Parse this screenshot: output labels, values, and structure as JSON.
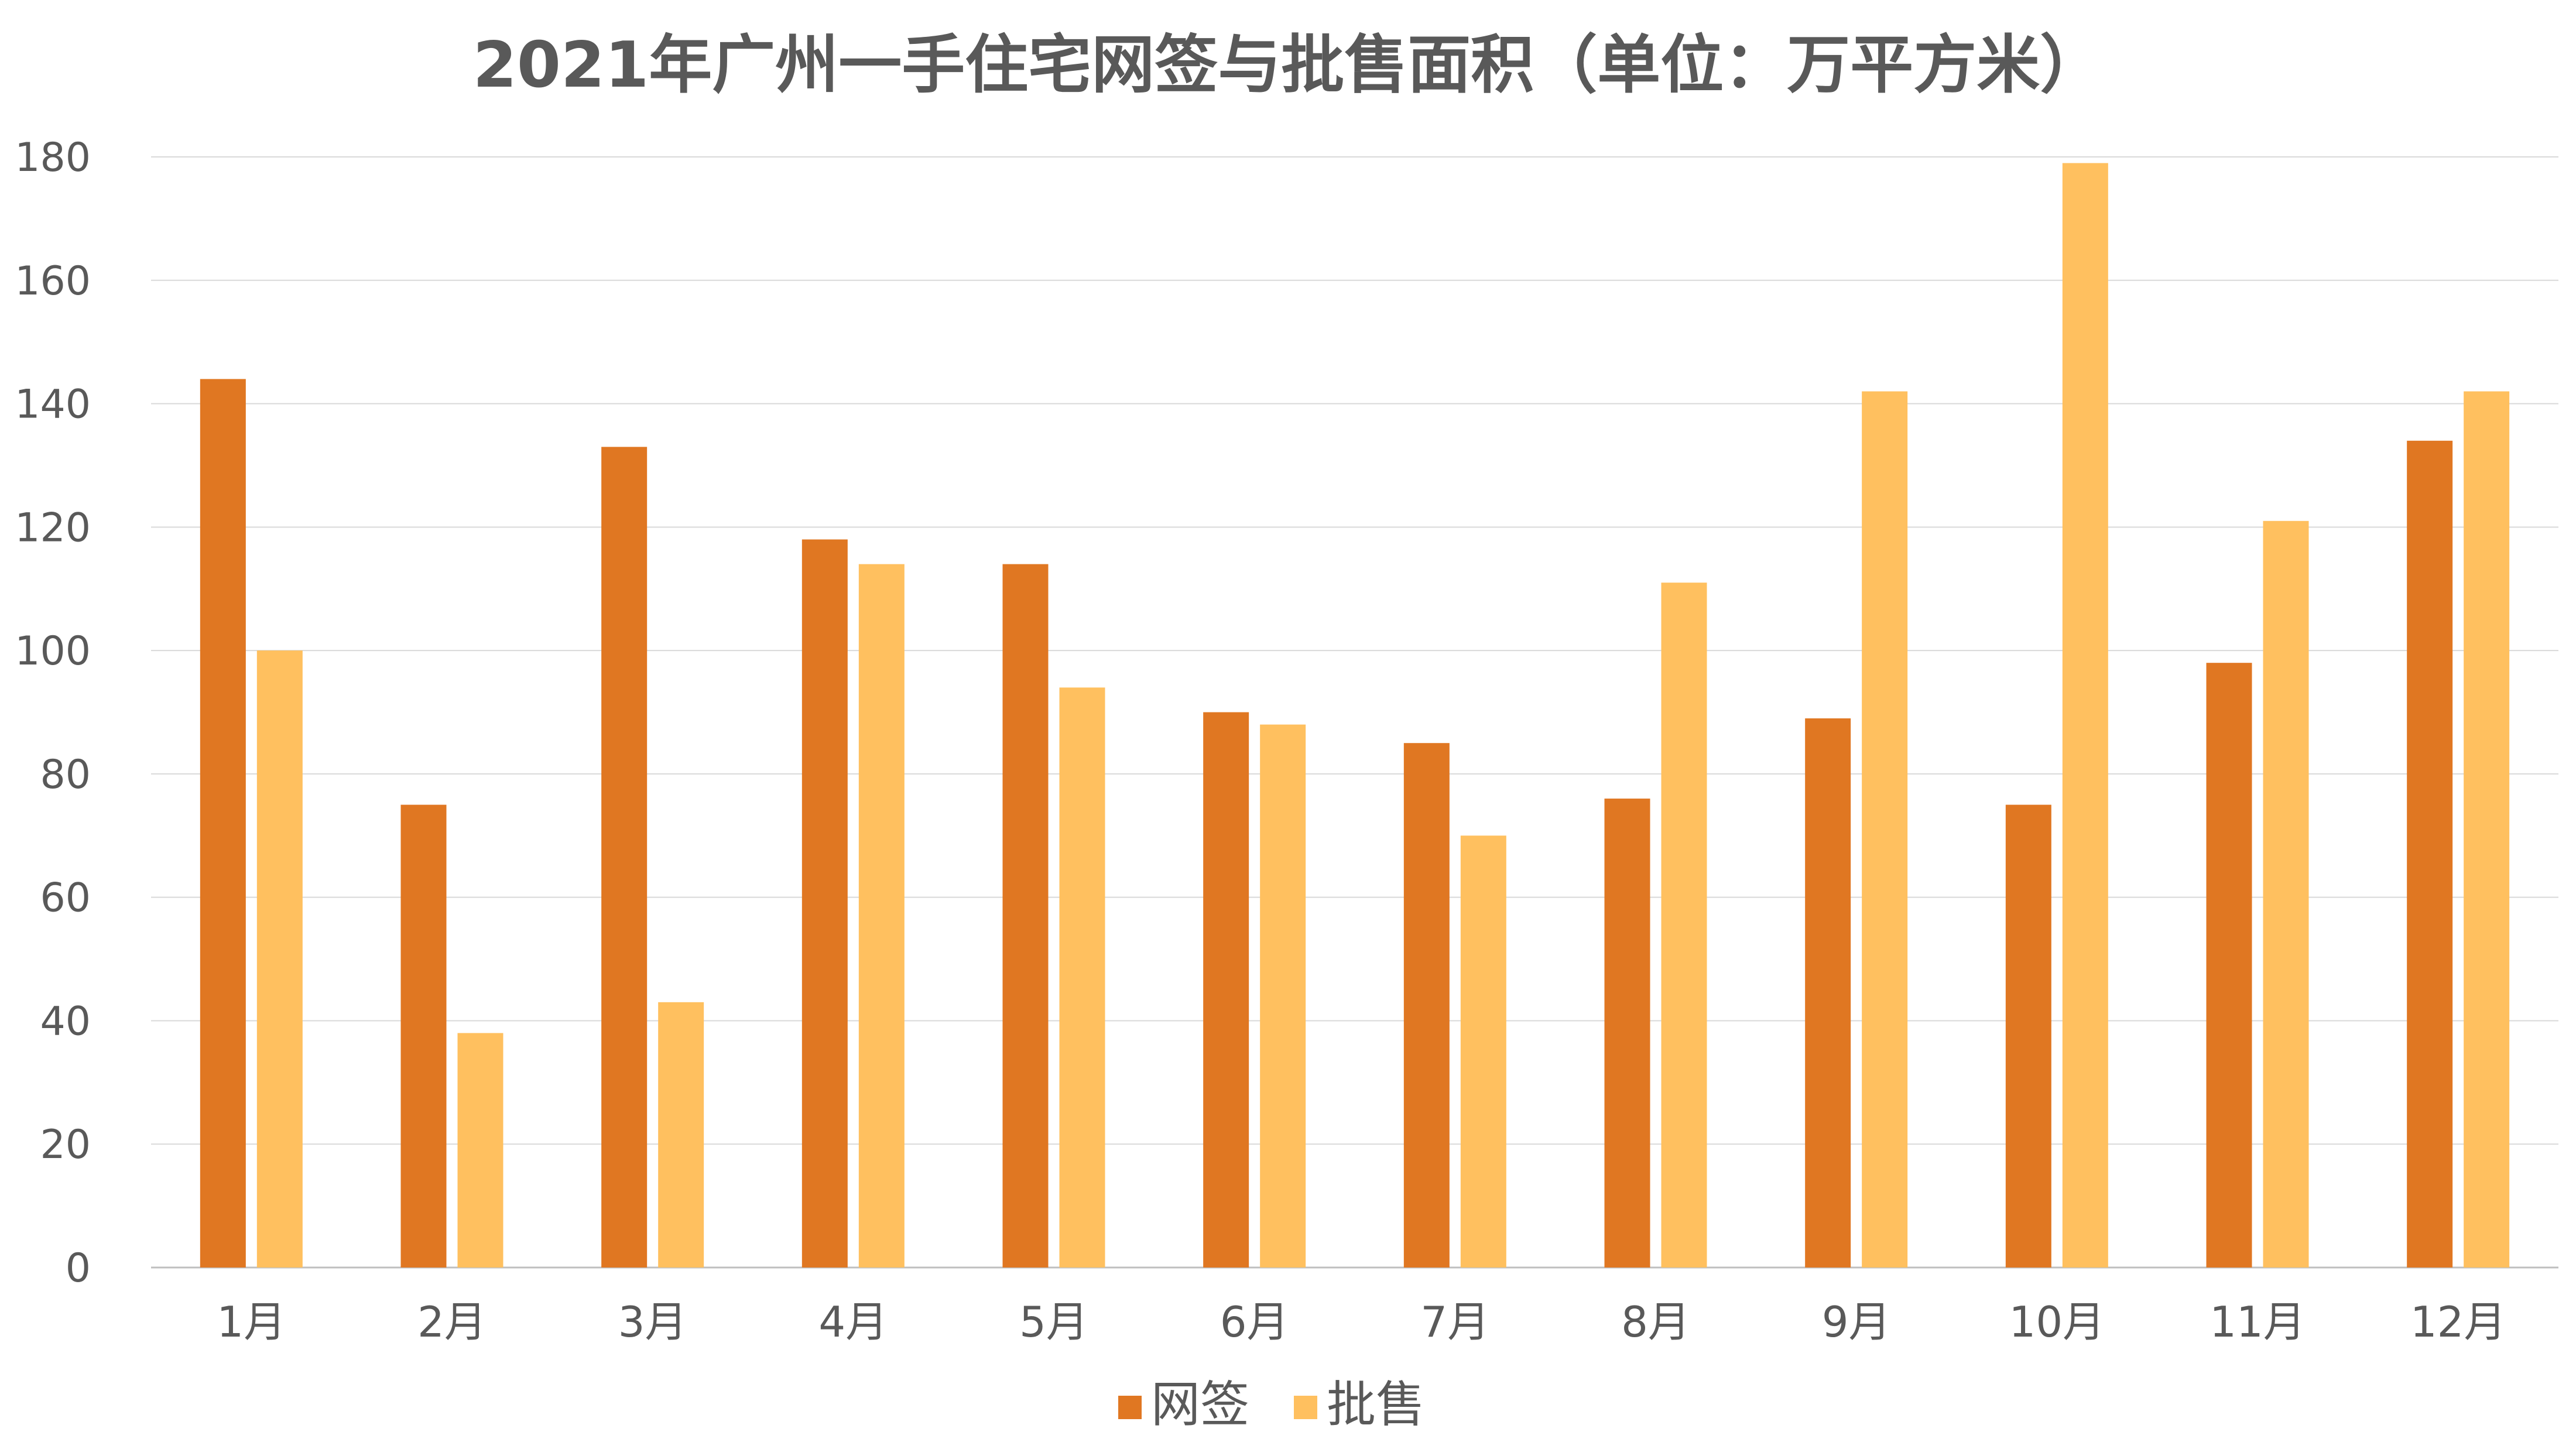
{
  "chart_data": {
    "type": "bar",
    "title": "2021年广州一手住宅网签与批售面积（单位：万平方米）",
    "xlabel": "",
    "ylabel": "",
    "categories": [
      "1月",
      "2月",
      "3月",
      "4月",
      "5月",
      "6月",
      "7月",
      "8月",
      "9月",
      "10月",
      "11月",
      "12月"
    ],
    "series": [
      {
        "name": "网签",
        "color": "#E07722",
        "values": [
          144,
          75,
          133,
          118,
          114,
          90,
          85,
          76,
          89,
          75,
          98,
          134
        ]
      },
      {
        "name": "批售",
        "color": "#FFC05F",
        "values": [
          100,
          38,
          43,
          114,
          94,
          88,
          70,
          111,
          142,
          179,
          121,
          142
        ]
      }
    ],
    "ylim": [
      0,
      180
    ],
    "yticks": [
      0,
      20,
      40,
      60,
      80,
      100,
      120,
      140,
      160,
      180
    ],
    "grid": true,
    "legend_position": "bottom"
  }
}
